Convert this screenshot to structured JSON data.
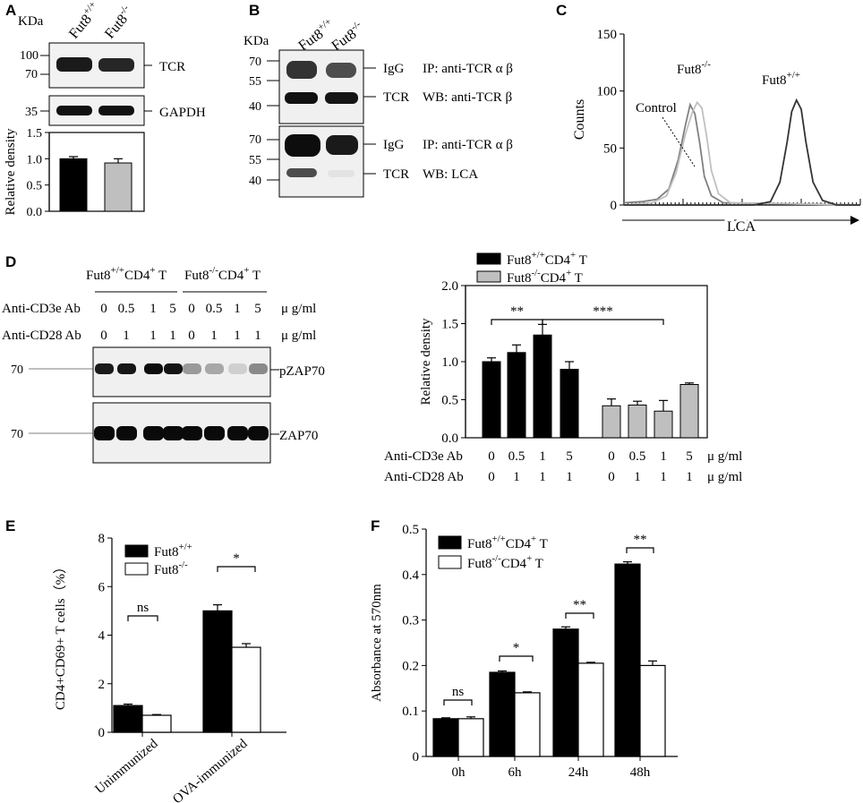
{
  "panels": {
    "A": {
      "label": "A",
      "unit": "KDa",
      "lanes": [
        "Fut8",
        "Fut8"
      ],
      "lane_sup": [
        "+/+",
        "-/-"
      ],
      "markers": [
        "100",
        "70",
        "35"
      ],
      "blots": [
        "TCR",
        "GAPDH"
      ]
    },
    "B": {
      "label": "B",
      "unit": "KDa",
      "lanes": [
        "Fut8",
        "Fut8"
      ],
      "lane_sup": [
        "+/+",
        "-/-"
      ],
      "markers_top": [
        "70",
        "55",
        "40"
      ],
      "markers_bottom": [
        "70",
        "55",
        "40"
      ],
      "top_bands": [
        "IgG",
        "TCR"
      ],
      "top_ip": "IP: anti-TCR α  β",
      "top_wb": "WB: anti-TCR β",
      "bottom_bands": [
        "IgG",
        "TCR"
      ],
      "bottom_ip": "IP: anti-TCR α  β",
      "bottom_wb": "WB: LCA"
    },
    "C": {
      "label": "C",
      "curve_labels": [
        "Fut8",
        "Fut8",
        "Control"
      ],
      "curve_sups": [
        "-/-",
        "+/+",
        ""
      ]
    },
    "D": {
      "label": "D",
      "group1": "Fut8",
      "group1_sup": "+/+",
      "group1_tail": "CD4",
      "group2": "Fut8",
      "group2_sup": "-/-",
      "group2_tail": "CD4",
      "t_suffix": "T",
      "cd3_label": "Anti-CD3e Ab",
      "cd28_label": "Anti-CD28 Ab",
      "cd3_values": [
        "0",
        "0.5",
        "1",
        "5",
        "0",
        "0.5",
        "1",
        "5"
      ],
      "cd28_values": [
        "0",
        "1",
        "1",
        "1",
        "0",
        "1",
        "1",
        "1"
      ],
      "unit": "μ g/ml",
      "marker": "70",
      "blots": [
        "pZAP70",
        "ZAP70"
      ]
    },
    "E": {
      "label": "E"
    },
    "F": {
      "label": "F"
    }
  },
  "chart_data": [
    {
      "id": "A",
      "type": "bar",
      "categories": [
        "Fut8+/+",
        "Fut8-/-"
      ],
      "values": [
        1.0,
        0.92
      ],
      "errors": [
        0.04,
        0.08
      ],
      "colors": [
        "#000000",
        "#bfbfbf"
      ],
      "ylabel": "Relative density",
      "ylim": [
        0,
        1.5
      ],
      "yticks": [
        "0.0",
        "0.5",
        "1.0",
        "1.5"
      ]
    },
    {
      "id": "C",
      "type": "line",
      "xlabel": "LCA",
      "ylabel": "Counts",
      "ylim": [
        0,
        150
      ],
      "yticks": [
        "0",
        "50",
        "100",
        "150"
      ],
      "series": [
        {
          "name": "Control",
          "color": "#808080",
          "points": [
            [
              0,
              2
            ],
            [
              0.08,
              3
            ],
            [
              0.14,
              5
            ],
            [
              0.19,
              14
            ],
            [
              0.23,
              40
            ],
            [
              0.26,
              70
            ],
            [
              0.28,
              88
            ],
            [
              0.3,
              80
            ],
            [
              0.32,
              55
            ],
            [
              0.34,
              25
            ],
            [
              0.37,
              8
            ],
            [
              0.42,
              2
            ],
            [
              1,
              0
            ]
          ]
        },
        {
          "name": "Fut8-/-",
          "color": "#c0c0c0",
          "points": [
            [
              0,
              0
            ],
            [
              0.12,
              2
            ],
            [
              0.18,
              8
            ],
            [
              0.22,
              28
            ],
            [
              0.26,
              62
            ],
            [
              0.29,
              82
            ],
            [
              0.31,
              90
            ],
            [
              0.33,
              85
            ],
            [
              0.35,
              60
            ],
            [
              0.37,
              30
            ],
            [
              0.4,
              10
            ],
            [
              0.45,
              2
            ],
            [
              1,
              0
            ]
          ]
        },
        {
          "name": "Fut8+/+",
          "color": "#333333",
          "points": [
            [
              0,
              0
            ],
            [
              0.55,
              0
            ],
            [
              0.62,
              3
            ],
            [
              0.66,
              20
            ],
            [
              0.69,
              55
            ],
            [
              0.71,
              82
            ],
            [
              0.73,
              92
            ],
            [
              0.75,
              84
            ],
            [
              0.77,
              55
            ],
            [
              0.8,
              20
            ],
            [
              0.84,
              4
            ],
            [
              0.9,
              0
            ],
            [
              1,
              0
            ]
          ]
        }
      ]
    },
    {
      "id": "D",
      "type": "bar",
      "ylabel": "Relative density",
      "ylim": [
        0,
        2.0
      ],
      "yticks": [
        "0.0",
        "0.5",
        "1.0",
        "1.5",
        "2.0"
      ],
      "categories": [
        "0",
        "0.5",
        "1",
        "5",
        "0",
        "0.5",
        "1",
        "5"
      ],
      "values": [
        1.0,
        1.12,
        1.35,
        0.9,
        0.42,
        0.43,
        0.35,
        0.7
      ],
      "errors": [
        0.05,
        0.1,
        0.14,
        0.1,
        0.09,
        0.05,
        0.14,
        0.02
      ],
      "groups": [
        0,
        0,
        0,
        0,
        1,
        1,
        1,
        1
      ],
      "series": [
        {
          "name": "Fut8+/+CD4+ T",
          "color": "#000000"
        },
        {
          "name": "Fut8-/-CD4+ T",
          "color": "#bfbfbf"
        }
      ],
      "legend": {
        "entries": [
          "Fut8",
          "Fut8"
        ],
        "sups": [
          "+/+",
          "-/-"
        ],
        "tails": [
          "CD4",
          "CD4"
        ],
        "tail_sup": "+",
        "suffix": "T"
      },
      "annotations": [
        "**",
        "***"
      ]
    },
    {
      "id": "E",
      "type": "bar",
      "ylabel": "CD4+CD69+ T cells（%）",
      "ylim": [
        0,
        8
      ],
      "yticks": [
        "0",
        "2",
        "4",
        "6",
        "8"
      ],
      "categories": [
        "Unimmunized",
        "OVA-immunized"
      ],
      "series": [
        {
          "name": "Fut8+/+",
          "color": "#000000",
          "values": [
            1.1,
            5.0
          ],
          "errors": [
            0.06,
            0.25
          ]
        },
        {
          "name": "Fut8-/-",
          "color": "#ffffff",
          "values": [
            0.7,
            3.5
          ],
          "errors": [
            0.03,
            0.15
          ]
        }
      ],
      "legend": {
        "entries": [
          "Fut8",
          "Fut8"
        ],
        "sups": [
          "+/+",
          "-/-"
        ]
      },
      "annotations": [
        "ns",
        "*"
      ]
    },
    {
      "id": "F",
      "type": "bar",
      "ylabel": "Absorbance at 570nm",
      "ylim": [
        0,
        0.5
      ],
      "yticks": [
        "0",
        "0.1",
        "0.2",
        "0.3",
        "0.4",
        "0.5"
      ],
      "categories": [
        "0h",
        "6h",
        "24h",
        "48h"
      ],
      "series": [
        {
          "name": "Fut8+/+CD4+ T",
          "color": "#000000",
          "values": [
            0.083,
            0.185,
            0.28,
            0.423
          ],
          "errors": [
            0.002,
            0.003,
            0.005,
            0.005
          ]
        },
        {
          "name": "Fut8-/-CD4+ T",
          "color": "#ffffff",
          "values": [
            0.083,
            0.14,
            0.205,
            0.2
          ],
          "errors": [
            0.004,
            0.002,
            0.002,
            0.01
          ]
        }
      ],
      "legend": {
        "entries": [
          "Fut8",
          "Fut8"
        ],
        "sups": [
          "+/+",
          "-/-"
        ],
        "tails": [
          "CD4",
          "CD4"
        ],
        "tail_sup": "+",
        "suffix": "T"
      },
      "annotations": [
        "ns",
        "*",
        "**",
        "**"
      ]
    }
  ]
}
